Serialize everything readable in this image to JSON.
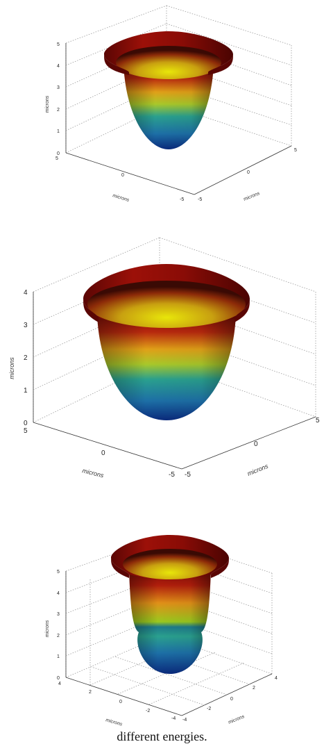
{
  "colors": {
    "rim": "#8c0c08",
    "inner_glow": "#e8e60a",
    "bottom": "#0a2a7c",
    "box": "#9a9a9a"
  },
  "panels": [
    {
      "zlabel": "microns",
      "xlabel": "microns",
      "ylabel": "microns",
      "zticks": [
        "0",
        "1",
        "2",
        "3",
        "4",
        "5"
      ],
      "xticks": [
        "5",
        "0",
        "-5"
      ],
      "yticks": [
        "-5",
        "0",
        "5"
      ]
    },
    {
      "zlabel": "microns",
      "xlabel": "microns",
      "ylabel": "microns",
      "zticks": [
        "0",
        "1",
        "2",
        "3",
        "4"
      ],
      "xticks": [
        "5",
        "0",
        "-5"
      ],
      "yticks": [
        "-5",
        "0",
        "5"
      ]
    },
    {
      "zlabel": "microns",
      "xlabel": "microns",
      "ylabel": "microns",
      "zticks": [
        "0",
        "1",
        "2",
        "3",
        "4",
        "5"
      ],
      "xticks": [
        "4",
        "2",
        "0",
        "-2",
        "-4"
      ],
      "yticks": [
        "-4",
        "-2",
        "0",
        "2",
        "4"
      ]
    }
  ],
  "caption": "different energies."
}
